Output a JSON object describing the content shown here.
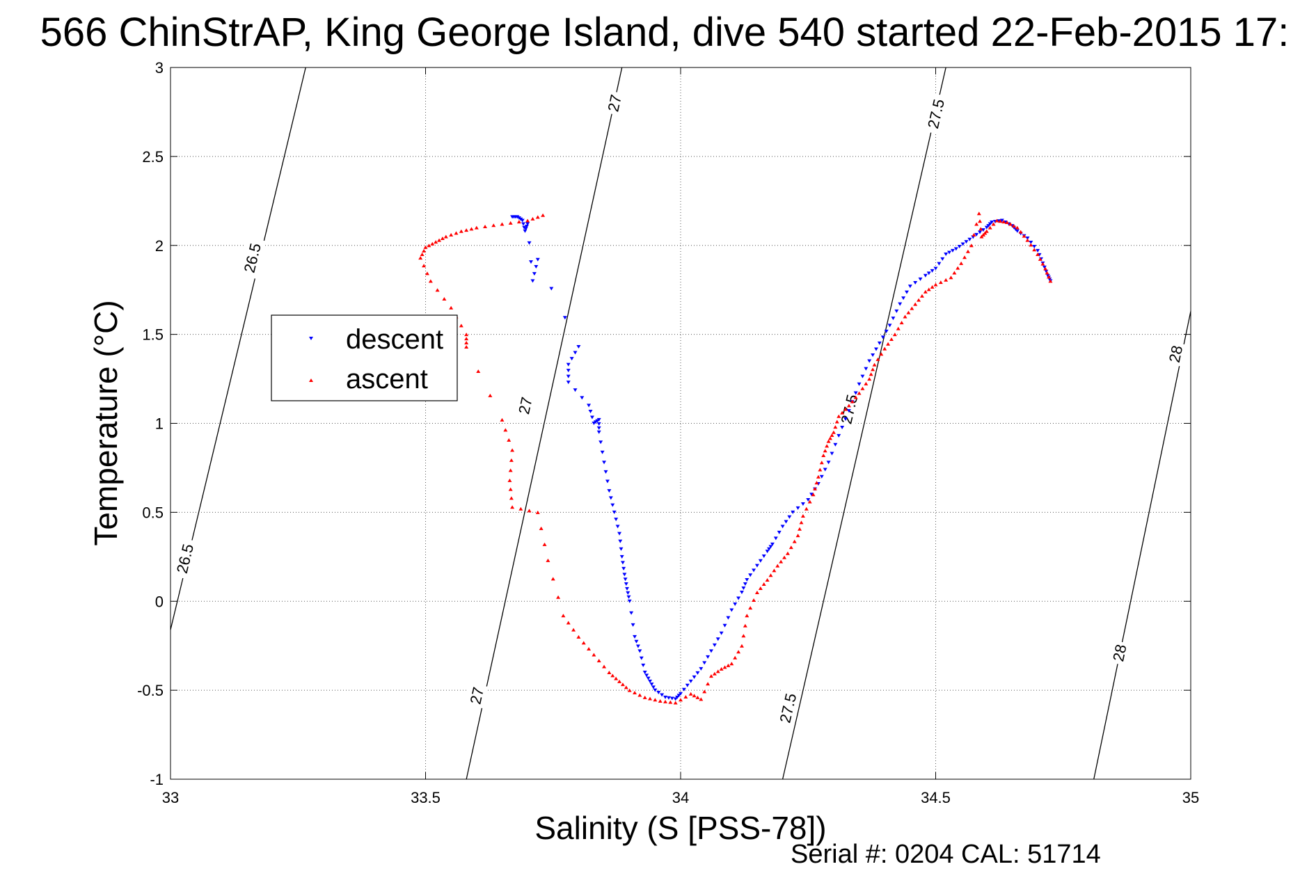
{
  "chart_data": {
    "type": "scatter",
    "title": "566 ChinStrAP, King George Island, dive 540 started 22-Feb-2015 17:",
    "xlabel": "Salinity (S [PSS-78])",
    "ylabel": "Temperature (°C)",
    "xlim": [
      33,
      35
    ],
    "ylim": [
      -1,
      3
    ],
    "xticks": [
      "33",
      "33.5",
      "34",
      "34.5",
      "35"
    ],
    "yticks": [
      "-1",
      "-0.5",
      "0",
      "0.5",
      "1",
      "1.5",
      "2",
      "2.5",
      "3"
    ],
    "grid": true,
    "legend_position": "upper-left",
    "footer": "Serial #: 0204  CAL: 51714",
    "contours": [
      {
        "label": "26.5",
        "points": [
          [
            33.0,
            -0.16
          ],
          [
            33.265,
            3.0
          ]
        ]
      },
      {
        "label": "27",
        "points": [
          [
            33.58,
            -1.0
          ],
          [
            33.885,
            3.0
          ]
        ]
      },
      {
        "label": "27.5",
        "points": [
          [
            34.2,
            -1.0
          ],
          [
            34.52,
            3.0
          ]
        ]
      },
      {
        "label": "28",
        "points": [
          [
            34.81,
            -1.0
          ],
          [
            35.0,
            1.63
          ]
        ]
      }
    ],
    "contour_labels": [
      {
        "text": "26.5",
        "x": 33.16,
        "y": 1.93
      },
      {
        "text": "26.5",
        "x": 33.028,
        "y": 0.24
      },
      {
        "text": "27",
        "x": 33.87,
        "y": 2.8
      },
      {
        "text": "27",
        "x": 33.695,
        "y": 1.1
      },
      {
        "text": "27",
        "x": 33.6,
        "y": -0.53
      },
      {
        "text": "27.5",
        "x": 34.5,
        "y": 2.74
      },
      {
        "text": "27.5",
        "x": 34.33,
        "y": 1.08
      },
      {
        "text": "27.5",
        "x": 34.21,
        "y": -0.6
      },
      {
        "text": "28",
        "x": 34.97,
        "y": 1.39
      },
      {
        "text": "28",
        "x": 34.86,
        "y": -0.29
      }
    ],
    "series": [
      {
        "name": "descent",
        "color": "#0000ff",
        "marker": "triangle-down",
        "points": [
          [
            33.67,
            2.16
          ],
          [
            33.68,
            2.16
          ],
          [
            33.69,
            2.14
          ],
          [
            33.695,
            2.08
          ],
          [
            33.7,
            2.12
          ],
          [
            33.71,
            1.8
          ],
          [
            33.72,
            1.92
          ],
          [
            33.8,
            1.43
          ],
          [
            33.78,
            1.33
          ],
          [
            33.78,
            1.23
          ],
          [
            33.82,
            1.1
          ],
          [
            33.83,
            1.0
          ],
          [
            33.84,
            1.02
          ],
          [
            33.84,
            0.95
          ],
          [
            33.85,
            0.78
          ],
          [
            33.86,
            0.62
          ],
          [
            33.87,
            0.5
          ],
          [
            33.88,
            0.38
          ],
          [
            33.885,
            0.25
          ],
          [
            33.89,
            0.15
          ],
          [
            33.895,
            0.07
          ],
          [
            33.9,
            0.0
          ],
          [
            33.91,
            -0.2
          ],
          [
            33.92,
            -0.28
          ],
          [
            33.93,
            -0.4
          ],
          [
            33.94,
            -0.45
          ],
          [
            33.95,
            -0.5
          ],
          [
            33.97,
            -0.54
          ],
          [
            33.99,
            -0.55
          ],
          [
            34.0,
            -0.52
          ],
          [
            34.02,
            -0.45
          ],
          [
            34.04,
            -0.38
          ],
          [
            34.06,
            -0.28
          ],
          [
            34.08,
            -0.18
          ],
          [
            34.1,
            -0.05
          ],
          [
            34.12,
            0.05
          ],
          [
            34.13,
            0.12
          ],
          [
            34.15,
            0.2
          ],
          [
            34.17,
            0.28
          ],
          [
            34.18,
            0.32
          ],
          [
            34.2,
            0.42
          ],
          [
            34.22,
            0.5
          ],
          [
            34.25,
            0.57
          ],
          [
            34.27,
            0.66
          ],
          [
            34.29,
            0.78
          ],
          [
            34.31,
            0.93
          ],
          [
            34.33,
            1.07
          ],
          [
            34.35,
            1.22
          ],
          [
            34.37,
            1.35
          ],
          [
            34.39,
            1.45
          ],
          [
            34.41,
            1.55
          ],
          [
            34.43,
            1.67
          ],
          [
            34.45,
            1.77
          ],
          [
            34.48,
            1.83
          ],
          [
            34.5,
            1.87
          ],
          [
            34.52,
            1.95
          ],
          [
            34.54,
            1.98
          ],
          [
            34.56,
            2.02
          ],
          [
            34.58,
            2.06
          ],
          [
            34.6,
            2.1
          ],
          [
            34.61,
            2.13
          ],
          [
            34.63,
            2.14
          ],
          [
            34.65,
            2.11
          ],
          [
            34.66,
            2.08
          ],
          [
            34.68,
            2.04
          ],
          [
            34.7,
            1.97
          ],
          [
            34.71,
            1.9
          ],
          [
            34.72,
            1.83
          ],
          [
            34.725,
            1.8
          ]
        ]
      },
      {
        "name": "ascent",
        "color": "#ff0000",
        "marker": "triangle-up",
        "points": [
          [
            33.73,
            2.17
          ],
          [
            33.7,
            2.14
          ],
          [
            33.65,
            2.12
          ],
          [
            33.6,
            2.1
          ],
          [
            33.57,
            2.08
          ],
          [
            33.54,
            2.05
          ],
          [
            33.52,
            2.02
          ],
          [
            33.5,
            1.99
          ],
          [
            33.49,
            1.93
          ],
          [
            33.51,
            1.8
          ],
          [
            33.55,
            1.65
          ],
          [
            33.58,
            1.5
          ],
          [
            33.58,
            1.43
          ],
          [
            33.65,
            1.02
          ],
          [
            33.67,
            0.85
          ],
          [
            33.665,
            0.68
          ],
          [
            33.67,
            0.53
          ],
          [
            33.72,
            0.5
          ],
          [
            33.74,
            0.23
          ],
          [
            33.77,
            -0.08
          ],
          [
            33.8,
            -0.2
          ],
          [
            33.83,
            -0.3
          ],
          [
            33.86,
            -0.4
          ],
          [
            33.88,
            -0.45
          ],
          [
            33.9,
            -0.5
          ],
          [
            33.93,
            -0.54
          ],
          [
            33.96,
            -0.56
          ],
          [
            33.99,
            -0.57
          ],
          [
            34.02,
            -0.52
          ],
          [
            34.04,
            -0.55
          ],
          [
            34.06,
            -0.42
          ],
          [
            34.08,
            -0.38
          ],
          [
            34.1,
            -0.35
          ],
          [
            34.12,
            -0.25
          ],
          [
            34.13,
            -0.08
          ],
          [
            34.15,
            0.05
          ],
          [
            34.17,
            0.12
          ],
          [
            34.19,
            0.2
          ],
          [
            34.21,
            0.27
          ],
          [
            34.23,
            0.37
          ],
          [
            34.24,
            0.48
          ],
          [
            34.26,
            0.6
          ],
          [
            34.27,
            0.7
          ],
          [
            34.28,
            0.82
          ],
          [
            34.29,
            0.9
          ],
          [
            34.3,
            0.95
          ],
          [
            34.31,
            1.04
          ],
          [
            34.33,
            1.1
          ],
          [
            34.35,
            1.17
          ],
          [
            34.37,
            1.25
          ],
          [
            34.38,
            1.33
          ],
          [
            34.4,
            1.42
          ],
          [
            34.42,
            1.5
          ],
          [
            34.44,
            1.6
          ],
          [
            34.46,
            1.67
          ],
          [
            34.48,
            1.74
          ],
          [
            34.5,
            1.78
          ],
          [
            34.53,
            1.82
          ],
          [
            34.55,
            1.9
          ],
          [
            34.57,
            2.0
          ],
          [
            34.585,
            2.18
          ],
          [
            34.59,
            2.05
          ],
          [
            34.6,
            2.08
          ],
          [
            34.62,
            2.14
          ],
          [
            34.64,
            2.13
          ],
          [
            34.66,
            2.1
          ],
          [
            34.68,
            2.03
          ],
          [
            34.7,
            1.95
          ],
          [
            34.715,
            1.87
          ],
          [
            34.725,
            1.8
          ]
        ]
      }
    ]
  }
}
